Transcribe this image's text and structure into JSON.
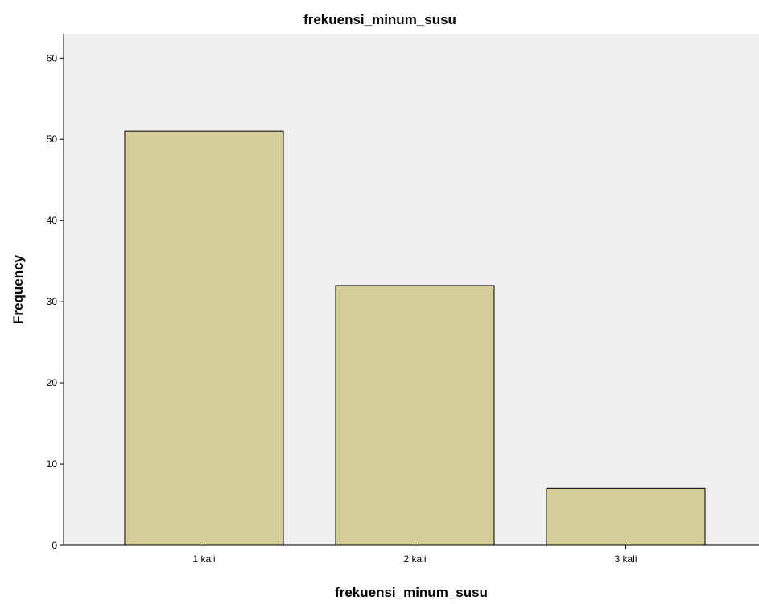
{
  "chart_data": {
    "type": "bar",
    "title": "frekuensi_minum_susu",
    "xlabel": "frekuensi_minum_susu",
    "ylabel": "Frequency",
    "categories": [
      "1 kali",
      "2 kali",
      "3 kali"
    ],
    "values": [
      51,
      32,
      7
    ],
    "ylim": [
      0,
      63
    ],
    "yticks": [
      0,
      10,
      20,
      30,
      40,
      50,
      60
    ],
    "grid": false,
    "legend": "none",
    "colors": {
      "plot_background": "#f0f0f0",
      "bar_fill": "#d3ce97",
      "bar_stroke": "#000000",
      "axis": "#000000"
    }
  }
}
